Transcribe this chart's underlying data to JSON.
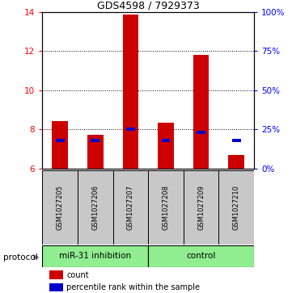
{
  "title": "GDS4598 / 7929373",
  "samples": [
    "GSM1027205",
    "GSM1027206",
    "GSM1027207",
    "GSM1027208",
    "GSM1027209",
    "GSM1027210"
  ],
  "red_values": [
    8.4,
    7.7,
    13.85,
    8.35,
    11.8,
    6.7
  ],
  "blue_values_pct": [
    18,
    18,
    25,
    18,
    23,
    18
  ],
  "ylim_left": [
    6,
    14
  ],
  "ylim_right": [
    0,
    100
  ],
  "yticks_left": [
    6,
    8,
    10,
    12,
    14
  ],
  "yticks_right": [
    0,
    25,
    50,
    75,
    100
  ],
  "ytick_labels_right": [
    "0%",
    "25%",
    "50%",
    "75%",
    "100%"
  ],
  "bar_color": "#CC0000",
  "dot_color": "#0000CC",
  "label_box_color": "#C8C8C8",
  "group_box_color": "#90EE90",
  "legend_count_label": "count",
  "legend_percentile_label": "percentile rank within the sample",
  "protocol_label": "protocol",
  "group_split": 3,
  "group_labels": [
    "miR-31 inhibition",
    "control"
  ]
}
